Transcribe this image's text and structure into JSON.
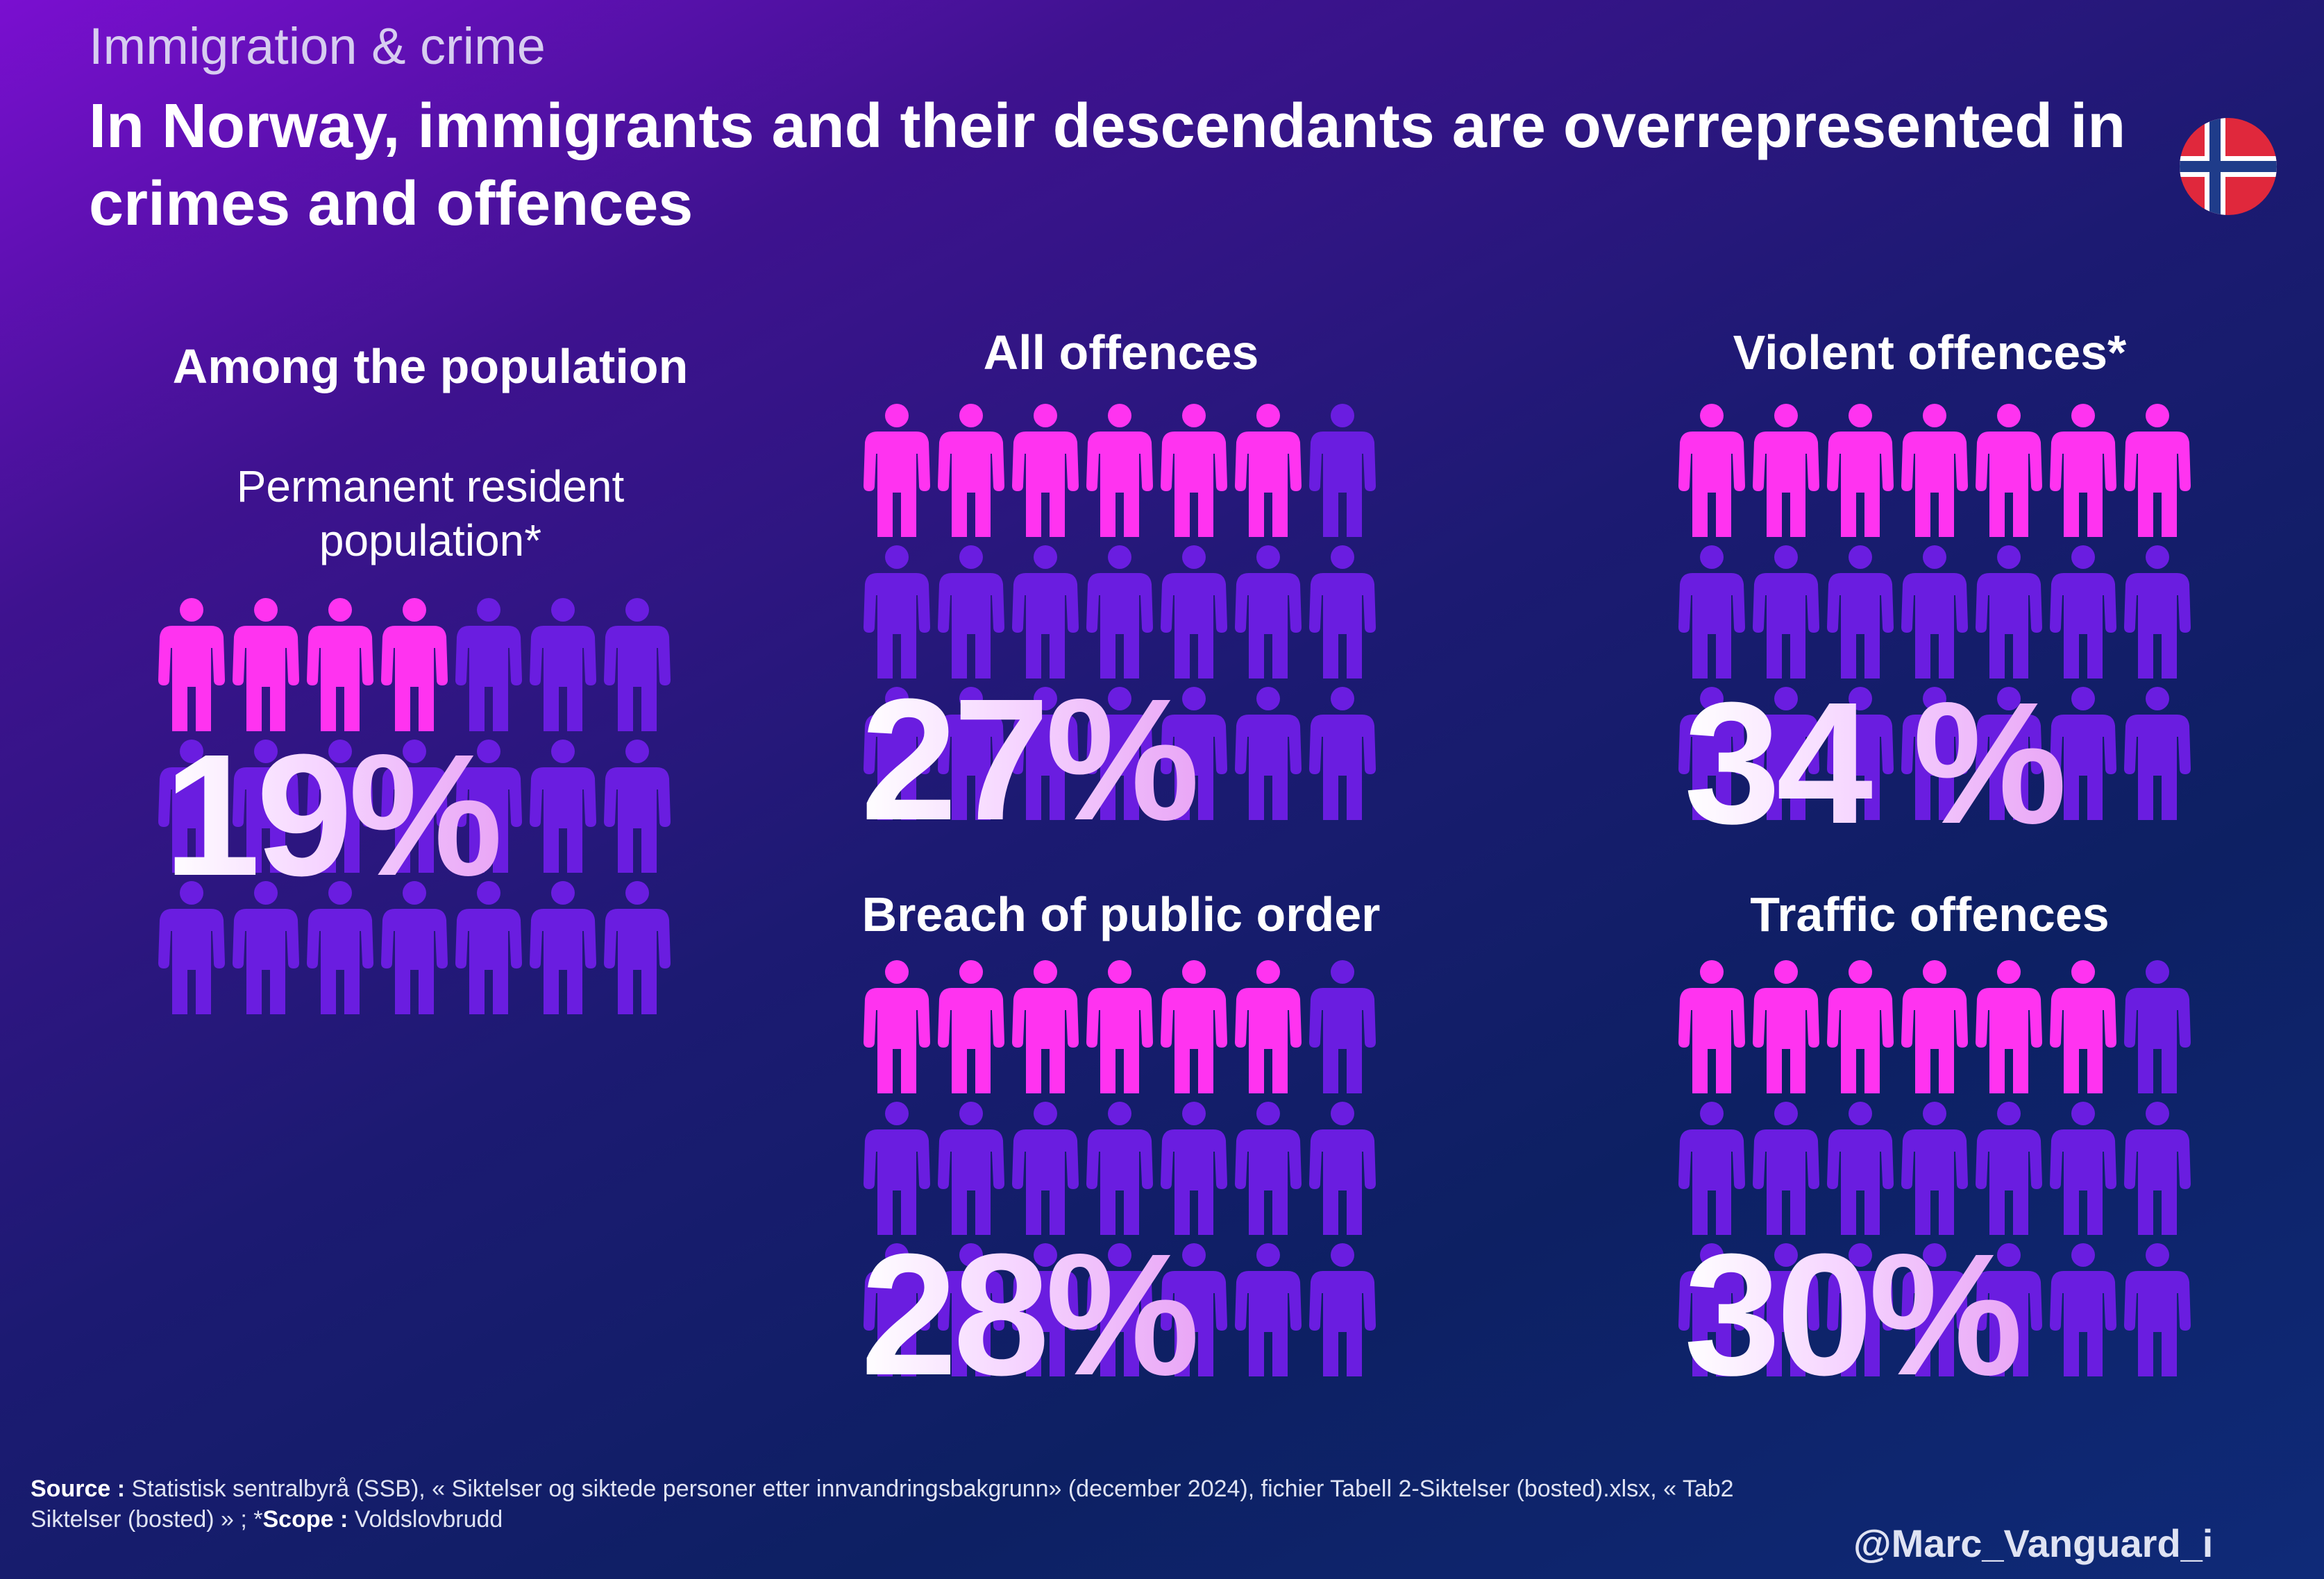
{
  "header": {
    "supertitle": "Immigration & crime",
    "title": "In Norway, immigrants and their descendants are overrepresented in crimes and offences",
    "flag_icon": "norway-flag-icon"
  },
  "colors": {
    "highlight": "#ff33f0",
    "base": "#6a1de0",
    "flag_red": "#e0283c",
    "flag_blue": "#1f3c8a"
  },
  "chart_data": [
    {
      "type": "table",
      "title": "Among the population",
      "subtitle": "Permanent resident population*",
      "label": "19%",
      "value_percent": 19,
      "highlighted_figures": 4,
      "grid": {
        "rows": 3,
        "cols": 7
      }
    },
    {
      "type": "table",
      "title": "All offences",
      "label": "27%",
      "value_percent": 27,
      "highlighted_figures": 6,
      "grid": {
        "rows": 3,
        "cols": 7
      }
    },
    {
      "type": "table",
      "title": "Violent offences*",
      "label": "34 %",
      "value_percent": 34,
      "highlighted_figures": 7,
      "grid": {
        "rows": 3,
        "cols": 7
      }
    },
    {
      "type": "table",
      "title": "Breach of public order",
      "label": "28%",
      "value_percent": 28,
      "highlighted_figures": 6,
      "grid": {
        "rows": 3,
        "cols": 7
      }
    },
    {
      "type": "table",
      "title": "Traffic offences",
      "label": "30%",
      "value_percent": 30,
      "highlighted_figures": 6,
      "grid": {
        "rows": 3,
        "cols": 7
      }
    }
  ],
  "footer": {
    "source_label": "Source :",
    "source_text": " Statistisk sentralbyrå (SSB), « Siktelser og siktede personer etter innvandringsbakgrunn»  (december 2024), fichier Tabell 2-Siktelser (bosted).xlsx, « Tab2 Siktelser (bosted) » ; *",
    "scope_label": "Scope :",
    "scope_text": " Voldslovbrudd",
    "handle": "@Marc_Vanguard_i"
  }
}
